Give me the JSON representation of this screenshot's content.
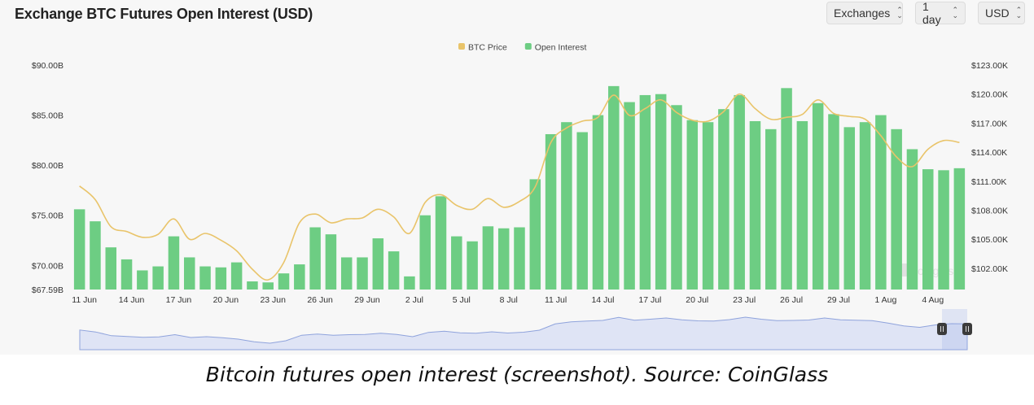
{
  "header": {
    "title": "Exchange BTC Futures Open Interest (USD)",
    "controls": {
      "exchanges": "Exchanges",
      "interval": "1 day",
      "currency": "USD"
    }
  },
  "watermark": "coinglass",
  "caption": "Bitcoin futures open interest (screenshot). Source: CoinGlass",
  "colors": {
    "open_interest": "#6dcd83",
    "btc_price": "#e9c46a",
    "navigator_fill": "#dfe4f5",
    "navigator_line": "#8fa3dc"
  },
  "chart_data": {
    "type": "bar",
    "title": "Exchange BTC Futures Open Interest (USD)",
    "legend": {
      "position": "top",
      "entries": [
        "BTC Price",
        "Open Interest"
      ]
    },
    "x_tick_labels": [
      "11 Jun",
      "14 Jun",
      "17 Jun",
      "20 Jun",
      "23 Jun",
      "26 Jun",
      "29 Jun",
      "2 Jul",
      "5 Jul",
      "8 Jul",
      "11 Jul",
      "14 Jul",
      "17 Jul",
      "20 Jul",
      "23 Jul",
      "26 Jul",
      "29 Jul",
      "1 Aug",
      "4 Aug"
    ],
    "x_start_date": "11 Jun",
    "y_left": {
      "min": 67.59,
      "max": 90,
      "tick_values": [
        67.59,
        70,
        75,
        80,
        85,
        90
      ],
      "tick_labels": [
        "$67.59B",
        "$70.00B",
        "$75.00B",
        "$80.00B",
        "$85.00B",
        "$90.00B"
      ]
    },
    "y_right": {
      "min": 99.8,
      "max": 123,
      "tick_values": [
        102,
        105,
        108,
        111,
        114,
        117,
        120,
        123
      ],
      "tick_labels": [
        "$102.00K",
        "$105.00K",
        "$108.00K",
        "$111.00K",
        "$114.00K",
        "$117.00K",
        "$120.00K",
        "$123.00K"
      ]
    },
    "series": [
      {
        "name": "Open Interest",
        "type": "bar",
        "axis": "left",
        "unit": "B USD",
        "values": [
          75.6,
          74.4,
          71.8,
          70.6,
          69.5,
          69.9,
          72.9,
          70.8,
          69.9,
          69.8,
          70.3,
          68.4,
          68.3,
          69.2,
          70.1,
          73.8,
          73.1,
          70.8,
          70.8,
          72.7,
          71.4,
          68.9,
          75.0,
          76.9,
          72.9,
          72.4,
          73.9,
          73.7,
          73.8,
          78.6,
          83.1,
          84.3,
          83.3,
          85.0,
          87.9,
          86.3,
          87.0,
          87.1,
          86.0,
          84.5,
          84.3,
          85.6,
          87.0,
          84.4,
          83.6,
          87.7,
          84.4,
          86.2,
          85.1,
          83.8,
          84.3,
          85.0,
          83.6,
          81.6,
          79.6,
          79.5,
          79.7
        ]
      },
      {
        "name": "BTC Price",
        "type": "line",
        "axis": "right",
        "unit": "K USD",
        "values": [
          110.5,
          109.1,
          106.3,
          105.8,
          105.2,
          105.5,
          107.1,
          105.0,
          105.6,
          104.9,
          103.8,
          101.9,
          100.8,
          102.6,
          106.7,
          107.6,
          106.7,
          107.1,
          107.2,
          108.1,
          107.3,
          105.6,
          108.8,
          109.6,
          108.5,
          108.1,
          109.2,
          108.3,
          108.9,
          110.4,
          115.0,
          116.5,
          117.2,
          117.6,
          119.9,
          117.8,
          118.5,
          119.4,
          118.1,
          117.3,
          117.2,
          118.2,
          120.0,
          118.5,
          117.4,
          117.6,
          117.9,
          119.4,
          118.0,
          117.7,
          117.4,
          115.7,
          113.5,
          112.5,
          114.3,
          115.2,
          115.0
        ]
      }
    ]
  }
}
